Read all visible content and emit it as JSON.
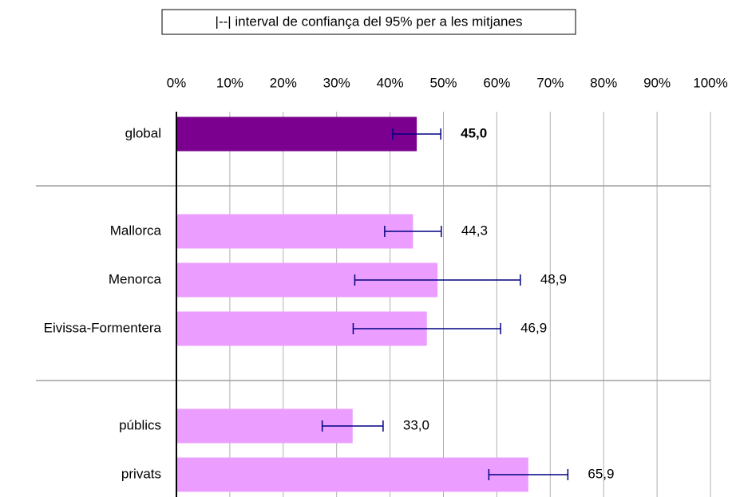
{
  "chart_data": {
    "type": "bar",
    "orientation": "horizontal",
    "legend_text": "|--| interval de confiança del 95% per a les mitjanes",
    "categories": [
      "global",
      null,
      "Mallorca",
      "Menorca",
      "Eivissa-Formentera",
      null,
      "públics",
      "privats"
    ],
    "values": [
      45.0,
      null,
      44.3,
      48.9,
      46.9,
      null,
      33.0,
      65.9
    ],
    "value_labels": [
      "45,0",
      null,
      "44,3",
      "48,9",
      "46,9",
      null,
      "33,0",
      "65,9"
    ],
    "errors": [
      4.5,
      null,
      5.3,
      15.5,
      13.8,
      null,
      5.7,
      7.4
    ],
    "colors": [
      "#7b0090",
      null,
      "#eb9eff",
      "#eb9eff",
      "#eb9eff",
      null,
      "#eb9eff",
      "#eb9eff"
    ],
    "error_color": "#000080",
    "xlim": [
      0,
      100
    ],
    "xticks": [
      {
        "value": 0,
        "label": "0%"
      },
      {
        "value": 10,
        "label": "10%"
      },
      {
        "value": 20,
        "label": "20%"
      },
      {
        "value": 30,
        "label": "30%"
      },
      {
        "value": 40,
        "label": "40%"
      },
      {
        "value": 50,
        "label": "50%"
      },
      {
        "value": 60,
        "label": "60%"
      },
      {
        "value": 70,
        "label": "70%"
      },
      {
        "value": 80,
        "label": "80%"
      },
      {
        "value": 90,
        "label": "90%"
      },
      {
        "value": 100,
        "label": "100%"
      }
    ],
    "grid": true
  }
}
